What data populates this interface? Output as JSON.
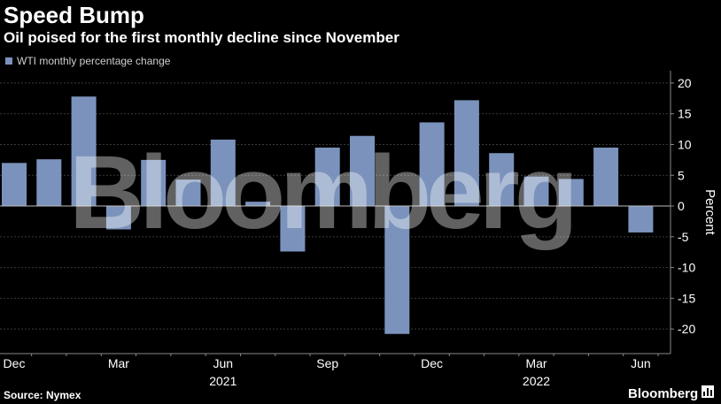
{
  "header": {
    "title": "Speed Bump",
    "subtitle": "Oil poised for the first monthly decline since November"
  },
  "legend": {
    "label": "WTI monthly percentage change",
    "color": "#7b93bc"
  },
  "footer": {
    "source": "Source: Nymex",
    "brand": "Bloomberg"
  },
  "watermark": "Bloomberg",
  "chart_data": {
    "type": "bar",
    "categories": [
      "Dec 2020",
      "Jan 2021",
      "Feb 2021",
      "Mar 2021",
      "Apr 2021",
      "May 2021",
      "Jun 2021",
      "Jul 2021",
      "Aug 2021",
      "Sep 2021",
      "Oct 2021",
      "Nov 2021",
      "Dec 2021",
      "Jan 2022",
      "Feb 2022",
      "Mar 2022",
      "Apr 2022",
      "May 2022",
      "Jun 2022"
    ],
    "series": [
      {
        "name": "WTI monthly percentage change",
        "values": [
          7.0,
          7.6,
          17.8,
          -3.8,
          7.5,
          4.3,
          10.8,
          0.7,
          -7.4,
          9.5,
          11.4,
          -20.8,
          13.6,
          17.2,
          8.6,
          4.8,
          4.4,
          9.5,
          -4.3
        ],
        "color": "#7b93bc"
      }
    ],
    "ylabel": "Percent",
    "ylim": [
      -24,
      22
    ],
    "yticks": [
      20,
      15,
      10,
      5,
      0,
      -5,
      -10,
      -15,
      -20
    ],
    "xtick_labels": [
      "Dec",
      "Mar",
      "Jun",
      "Sep",
      "Dec",
      "Mar",
      "Jun"
    ],
    "xtick_month_indices": [
      0,
      3,
      6,
      9,
      12,
      15,
      18
    ],
    "year_labels": [
      "2021",
      "2022"
    ],
    "year_label_month_positions": [
      6,
      15
    ],
    "grid": true,
    "legend_position": "top-left"
  }
}
